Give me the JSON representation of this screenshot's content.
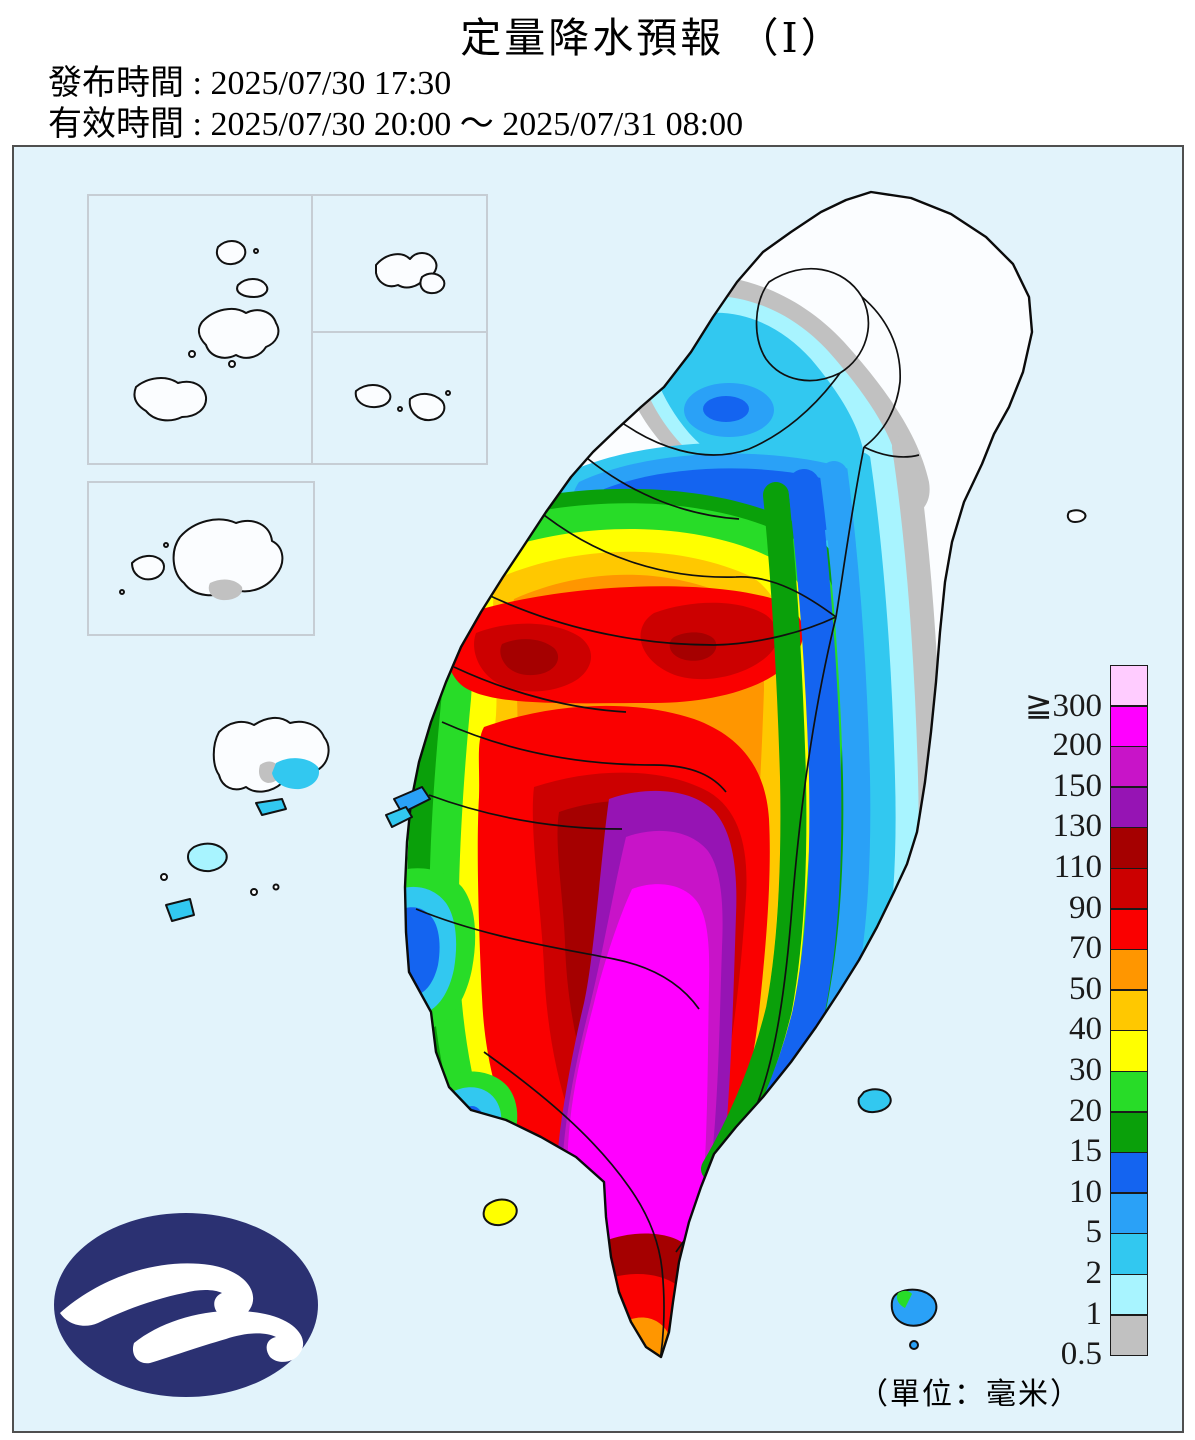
{
  "header": {
    "title": "定量降水預報 （Ⅰ）",
    "issued": {
      "label": "發布時間",
      "value": "2025/07/30 17:30"
    },
    "valid": {
      "label": "有效時間",
      "value": "2025/07/30 20:00 ～ 2025/07/31 08:00"
    },
    "separator": " : "
  },
  "map": {
    "unit_label": "（單位：毫米）",
    "ocean_color": "#E2F3FB",
    "land_no_rain_color": "#FBFDFF",
    "logo": {
      "name": "cwa-logo",
      "color": "#2B3172"
    }
  },
  "legend": {
    "items": [
      {
        "label": "≧300",
        "color": "#FFCCFF"
      },
      {
        "label": "200",
        "color": "#FF00FF"
      },
      {
        "label": "150",
        "color": "#C814C8"
      },
      {
        "label": "130",
        "color": "#9614B4"
      },
      {
        "label": "110",
        "color": "#A50000"
      },
      {
        "label": "90",
        "color": "#CC0000"
      },
      {
        "label": "70",
        "color": "#FA0000"
      },
      {
        "label": "50",
        "color": "#FF9600"
      },
      {
        "label": "40",
        "color": "#FFC800"
      },
      {
        "label": "30",
        "color": "#FFFF00"
      },
      {
        "label": "20",
        "color": "#28DC28"
      },
      {
        "label": "15",
        "color": "#0AA00A"
      },
      {
        "label": "10",
        "color": "#1464F0"
      },
      {
        "label": "5",
        "color": "#2AA1F7"
      },
      {
        "label": "2",
        "color": "#32C8F0"
      },
      {
        "label": "1",
        "color": "#A8F4FF"
      },
      {
        "label": "0.5",
        "color": "#C1C1C1"
      }
    ]
  }
}
